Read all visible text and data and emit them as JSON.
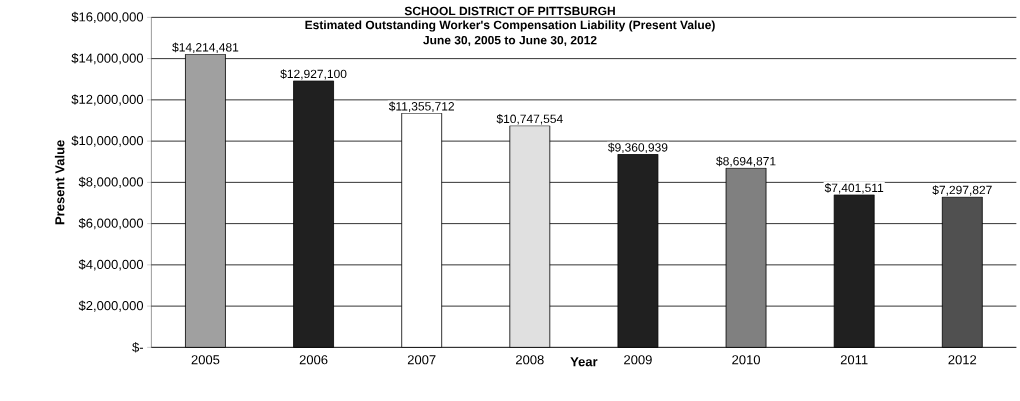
{
  "chart_data": {
    "type": "bar",
    "title": "SCHOOL DISTRICT OF PITTSBURGH",
    "subtitle": "Estimated Outstanding Worker's Compensation Liability (Present Value)",
    "annotations": [
      "June 30, 2005 to June 30, 2012"
    ],
    "xlabel": "Year",
    "ylabel": "Present Value",
    "categories": [
      "2005",
      "2006",
      "2007",
      "2008",
      "2009",
      "2010",
      "2011",
      "2012"
    ],
    "values": [
      14214481,
      12927100,
      11355712,
      10747554,
      9360939,
      8694871,
      7401511,
      7297827
    ],
    "value_labels": [
      "$14,214,481",
      "$12,927,100",
      "$11,355,712",
      "$10,747,554",
      "$9,360,939",
      "$8,694,871",
      "$7,401,511",
      "$7,297,827"
    ],
    "colors": [
      "#a0a0a0",
      "#202020",
      "#ffffff",
      "#e0e0e0",
      "#202020",
      "#808080",
      "#202020",
      "#505050"
    ],
    "ylim": [
      0,
      16000000
    ],
    "yticks": [
      {
        "value": 0,
        "label": "$-"
      },
      {
        "value": 2000000,
        "label": "$2,000,000"
      },
      {
        "value": 4000000,
        "label": "$4,000,000"
      },
      {
        "value": 6000000,
        "label": "$6,000,000"
      },
      {
        "value": 8000000,
        "label": "$8,000,000"
      },
      {
        "value": 10000000,
        "label": "$10,000,000"
      },
      {
        "value": 12000000,
        "label": "$12,000,000"
      },
      {
        "value": 14000000,
        "label": "$14,000,000"
      },
      {
        "value": 16000000,
        "label": "$16,000,000"
      }
    ],
    "grid": "y"
  }
}
